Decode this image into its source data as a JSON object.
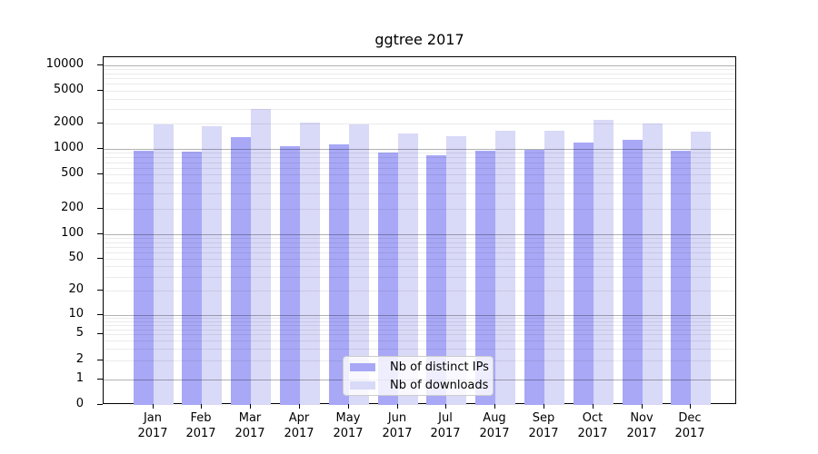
{
  "title": "ggtree 2017",
  "colors": {
    "ips_bar": "#a8a8f7",
    "downloads_bar": "#d9d9f8",
    "major_grid": "#b0b0b0",
    "minor_grid": "#e8e8e8",
    "axis": "#000000",
    "legend_border": "#cccccc"
  },
  "y_axis": {
    "tick_labels": [
      "10000",
      "5000",
      "2000",
      "1000",
      "500",
      "200",
      "100",
      "50",
      "20",
      "10",
      "5",
      "2",
      "1",
      "0"
    ]
  },
  "x_axis": {
    "months": [
      "Jan",
      "Feb",
      "Mar",
      "Apr",
      "May",
      "Jun",
      "Jul",
      "Aug",
      "Sep",
      "Oct",
      "Nov",
      "Dec"
    ],
    "year": "2017"
  },
  "legend": {
    "items": [
      {
        "label": "Nb of distinct IPs",
        "series": "ips"
      },
      {
        "label": "Nb of downloads",
        "series": "downloads"
      }
    ]
  },
  "chart_data": {
    "type": "bar",
    "title": "ggtree 2017",
    "categories": [
      "Jan 2017",
      "Feb 2017",
      "Mar 2017",
      "Apr 2017",
      "May 2017",
      "Jun 2017",
      "Jul 2017",
      "Aug 2017",
      "Sep 2017",
      "Oct 2017",
      "Nov 2017",
      "Dec 2017"
    ],
    "series": [
      {
        "name": "Nb of distinct IPs",
        "key": "ips",
        "values": [
          950,
          940,
          1400,
          1080,
          1120,
          900,
          850,
          950,
          980,
          1180,
          1270,
          950
        ]
      },
      {
        "name": "Nb of downloads",
        "key": "downloads",
        "values": [
          1950,
          1850,
          3000,
          2050,
          1980,
          1520,
          1420,
          1660,
          1640,
          2250,
          2010,
          1620
        ]
      }
    ],
    "y_scale": "log",
    "ylim": [
      0,
      10000
    ],
    "y_ticks": [
      0,
      1,
      2,
      5,
      10,
      20,
      50,
      100,
      200,
      500,
      1000,
      2000,
      5000,
      10000
    ],
    "grid": true,
    "legend_position": "lower center"
  }
}
